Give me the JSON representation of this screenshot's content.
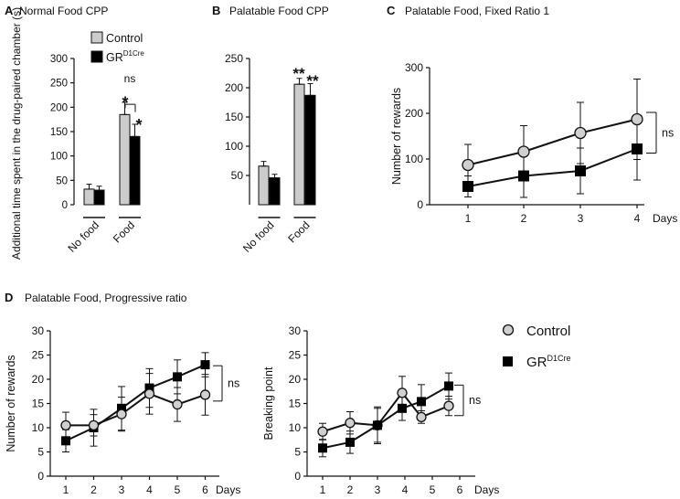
{
  "chart_data": [
    {
      "panel": "A",
      "title": "Normal Food CPP",
      "type": "bar",
      "ylabel": "Additional time spent in the drug-paired chamber (s)",
      "ylim": [
        0,
        300
      ],
      "yticks": [
        "0",
        "50",
        "100",
        "150",
        "200",
        "250",
        "300"
      ],
      "categories": [
        "No food",
        "Food"
      ],
      "series": [
        {
          "name": "Control",
          "color": "#cccccc",
          "values": [
            32,
            185
          ],
          "errors": [
            10,
            25
          ]
        },
        {
          "name": "GR",
          "sup": "D1Cre",
          "color": "#000000",
          "values": [
            30,
            140
          ],
          "errors": [
            8,
            25
          ]
        }
      ],
      "annotations": [
        {
          "text": "ns"
        },
        {
          "text": "*"
        },
        {
          "text": "*"
        }
      ],
      "legend": {
        "position": "top"
      }
    },
    {
      "panel": "B",
      "title": "Palatable Food CPP",
      "type": "bar",
      "ylabel": "",
      "ylim": [
        0,
        250
      ],
      "yticks": [
        "50",
        "100",
        "150",
        "200",
        "250"
      ],
      "categories": [
        "No food",
        "Food"
      ],
      "series": [
        {
          "name": "Control",
          "color": "#cccccc",
          "values": [
            66,
            206
          ],
          "errors": [
            8,
            10
          ]
        },
        {
          "name": "GR",
          "sup": "D1Cre",
          "color": "#000000",
          "values": [
            46,
            187
          ],
          "errors": [
            6,
            20
          ]
        }
      ],
      "annotations": [
        {
          "text": "**"
        },
        {
          "text": "**"
        }
      ]
    },
    {
      "panel": "C",
      "title": "Palatable Food, Fixed Ratio 1",
      "type": "line",
      "ylabel": "Number of rewards",
      "xlabel": "Days",
      "ylim": [
        0,
        300
      ],
      "yticks": [
        "0",
        "100",
        "200",
        "300"
      ],
      "x": [
        1,
        2,
        3,
        4
      ],
      "xticks": [
        "1",
        "2",
        "3",
        "4"
      ],
      "series": [
        {
          "name": "Control",
          "marker": "circle",
          "values": [
            87,
            116,
            157,
            187
          ],
          "errors": [
            45,
            57,
            67,
            88
          ]
        },
        {
          "name": "GR",
          "sup": "D1Cre",
          "marker": "square",
          "values": [
            40,
            63,
            74,
            122
          ],
          "errors": [
            23,
            47,
            50,
            68
          ]
        }
      ],
      "annotations": [
        {
          "text": "ns"
        }
      ]
    },
    {
      "panel": "D",
      "title": "Palatable Food, Progressive ratio",
      "type": "line",
      "ylabel": "Number of rewards",
      "xlabel": "Days",
      "ylim": [
        0,
        30
      ],
      "yticks": [
        "0",
        "5",
        "10",
        "15",
        "20",
        "25",
        "30"
      ],
      "x": [
        1,
        2,
        3,
        4,
        5,
        6
      ],
      "xticks": [
        "1",
        "2",
        "3",
        "4",
        "5",
        "6"
      ],
      "series": [
        {
          "name": "Control",
          "marker": "circle",
          "values": [
            10.5,
            10.5,
            12.8,
            17,
            14.8,
            16.8
          ],
          "errors": [
            2.7,
            2.2,
            3.5,
            4.2,
            3.5,
            4.2
          ]
        },
        {
          "name": "GR",
          "sup": "D1Cre",
          "marker": "square",
          "values": [
            7.3,
            10.0,
            14.0,
            18.2,
            20.5,
            23.0
          ],
          "errors": [
            2.3,
            3.8,
            4.5,
            4.0,
            3.5,
            2.5
          ]
        }
      ],
      "annotations": [
        {
          "text": "ns"
        }
      ]
    },
    {
      "panel": "D-right",
      "type": "line",
      "ylabel": "Breaking point",
      "xlabel": "Days",
      "ylim": [
        0,
        30
      ],
      "yticks": [
        "0",
        "5",
        "10",
        "15",
        "20",
        "25",
        "30"
      ],
      "xticks": [
        "1",
        "2",
        "3",
        "4",
        "5",
        "6"
      ],
      "series": [
        {
          "name": "Control",
          "marker": "circle",
          "x": [
            1,
            2,
            3,
            3.9,
            4.6,
            5.6
          ],
          "values": [
            9.2,
            11.0,
            10.5,
            17.2,
            12.2,
            14.5
          ],
          "errors": [
            1.7,
            2.3,
            3.5,
            3.4,
            1.3,
            2.0
          ]
        },
        {
          "name": "GR",
          "sup": "D1Cre",
          "marker": "square",
          "x": [
            1,
            2,
            3,
            3.9,
            4.6,
            5.6
          ],
          "values": [
            5.8,
            7.0,
            10.5,
            14.0,
            15.4,
            18.6
          ],
          "errors": [
            1.8,
            2.3,
            3.8,
            2.5,
            3.5,
            2.7
          ]
        }
      ],
      "annotations": [
        {
          "text": "ns"
        }
      ],
      "legend": {
        "position": "right",
        "entries": [
          {
            "label": "Control"
          },
          {
            "label": "GR",
            "sup": "D1Cre"
          }
        ]
      }
    }
  ]
}
